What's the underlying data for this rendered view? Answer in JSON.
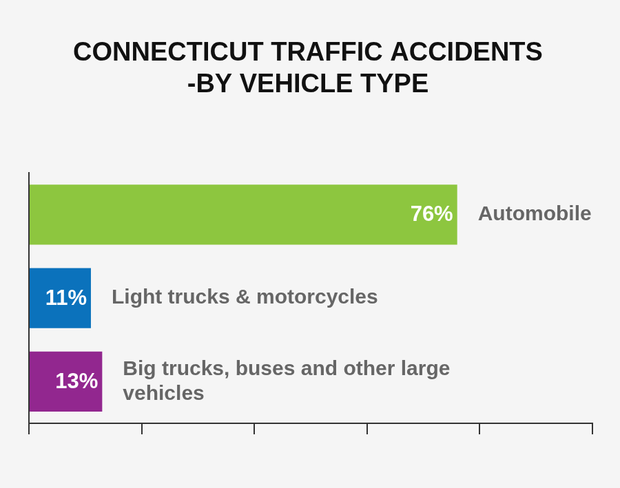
{
  "chart_data": {
    "type": "bar",
    "orientation": "horizontal",
    "title": [
      "CONNECTICUT TRAFFIC ACCIDENTS",
      "-BY VEHICLE TYPE"
    ],
    "categories": [
      "Automobile",
      "Light trucks & motorcycles",
      "Big trucks, buses and other large vehicles"
    ],
    "values": [
      76,
      11,
      13
    ],
    "value_labels": [
      "76%",
      "11%",
      "13%"
    ],
    "colors": [
      "#8dc63f",
      "#0b72bc",
      "#92278f"
    ],
    "xlim": [
      0,
      100
    ],
    "xticks": [
      0,
      20,
      40,
      60,
      80,
      100
    ],
    "grid": false,
    "data_labels": true,
    "tick_labels": false
  }
}
